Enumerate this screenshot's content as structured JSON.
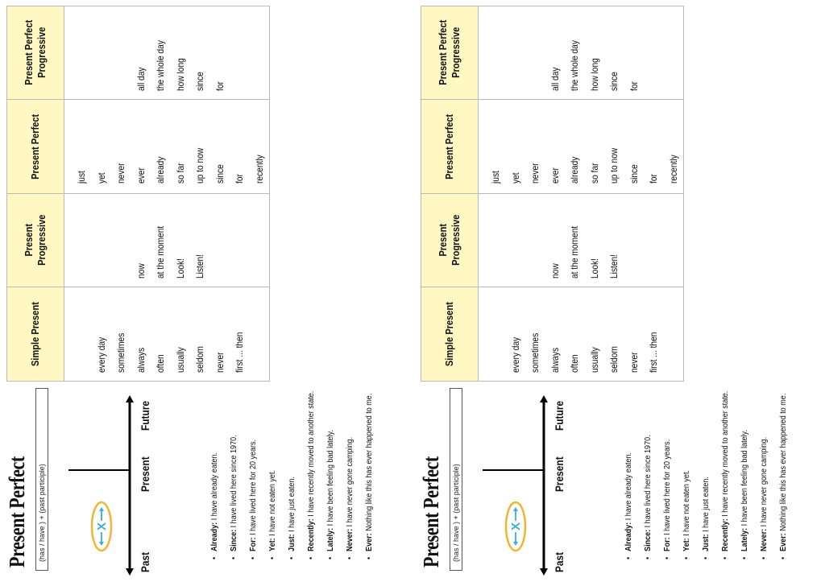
{
  "sheet": {
    "title": "Present Perfect",
    "formula": "(has / have ) + (past participle)",
    "timeline": {
      "marker": "X",
      "past": "Past",
      "present": "Present",
      "future": "Future"
    },
    "bullets": [
      {
        "term": "Already:",
        "text": " I have already eaten."
      },
      {
        "term": "Since:",
        "text": " I have lived here since 1970."
      },
      {
        "term": "For:",
        "text": " I have lived here for 20 years."
      },
      {
        "term": "Yet:",
        "text": " I have not eaten yet."
      },
      {
        "term": "Just:",
        "text": " I have just eaten."
      },
      {
        "term": "Recently:",
        "text": " I have recently moved to another state."
      },
      {
        "term": "Lately:",
        "text": " I have been feeling bad lately."
      },
      {
        "term": "Never:",
        "text": " I have never gone camping."
      },
      {
        "term": "Ever:",
        "text": " Nothing like this has ever happened to me."
      }
    ],
    "table": {
      "headers": [
        "Simple Present",
        "Present Progressive",
        "Present Perfect",
        "Present Perfect Progressive"
      ],
      "columns": [
        [
          "",
          "every day",
          "sometimes",
          "always",
          "often",
          "usually",
          "seldom",
          "never",
          "first ... then"
        ],
        [
          "",
          "",
          "",
          "now",
          "at the moment",
          "Look!",
          "Listen!"
        ],
        [
          "just",
          "yet",
          "never",
          "ever",
          "already",
          "so far",
          "up to now",
          "since",
          "for",
          "recently"
        ],
        [
          "",
          "",
          "",
          "all day",
          "the whole day",
          "how long",
          "since",
          "for"
        ]
      ]
    }
  },
  "colors": {
    "header_fill": "#fff8c3",
    "ellipse_stroke": "#f2b531",
    "marker": "#3aaed8"
  }
}
